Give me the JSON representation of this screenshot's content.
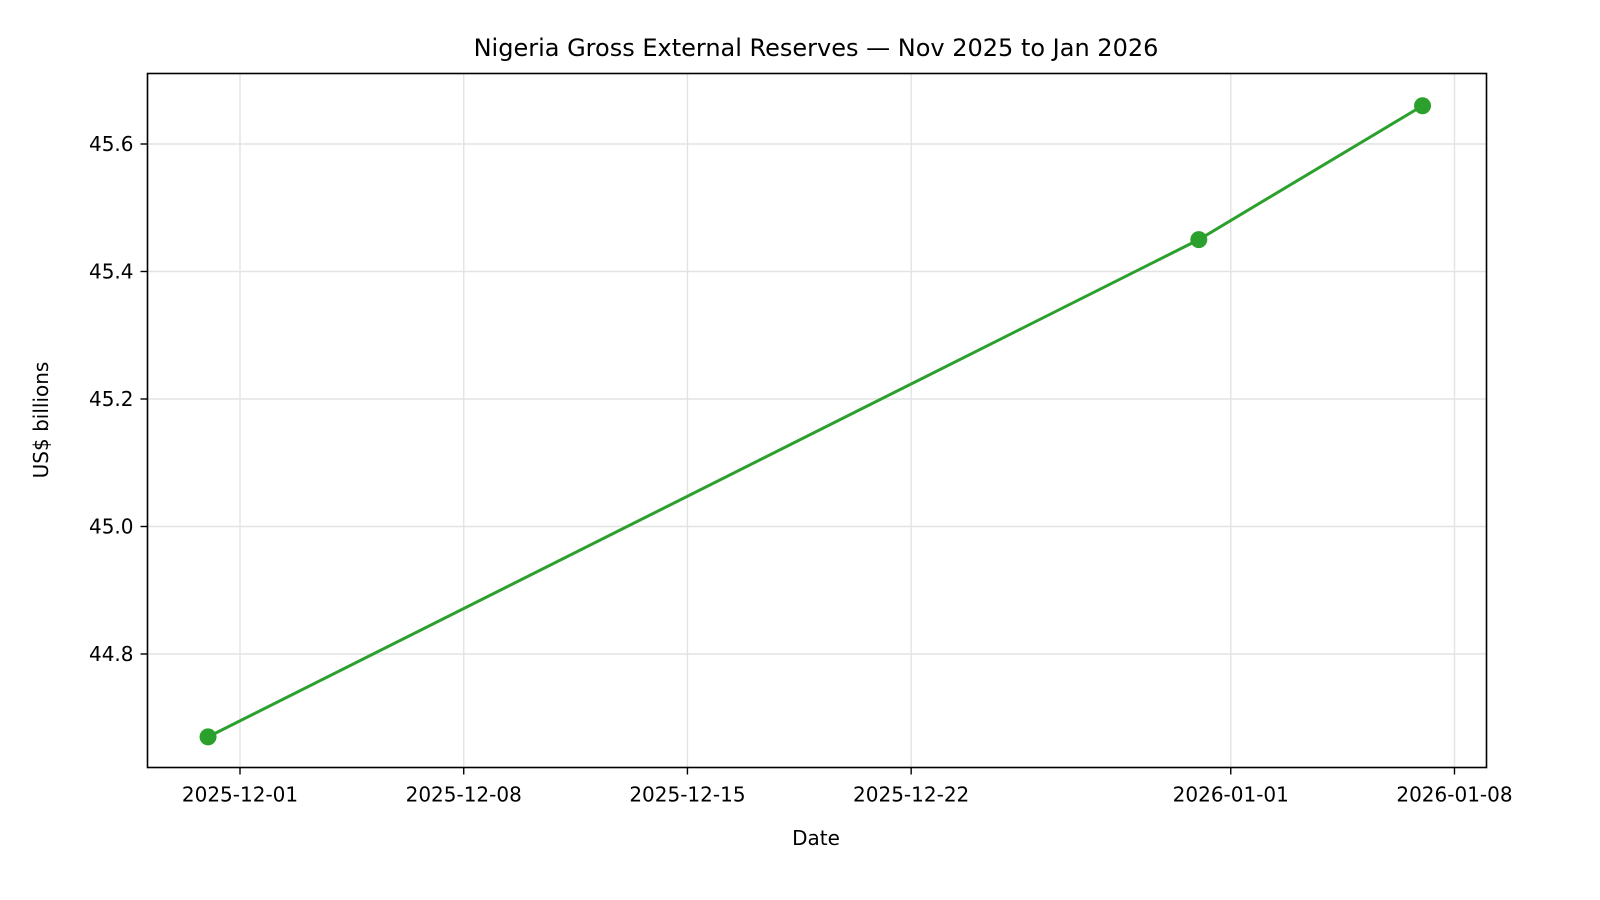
{
  "chart_data": {
    "type": "line",
    "title": "Nigeria Gross External Reserves — Nov 2025 to Jan 2026",
    "xlabel": "Date",
    "ylabel": "US$ billions",
    "x": [
      "2025-11-30",
      "2025-12-31",
      "2026-01-07"
    ],
    "series": [
      {
        "name": "Gross External Reserves",
        "values": [
          44.67,
          45.45,
          45.66
        ],
        "color": "#2ca02c",
        "marker": "circle"
      }
    ],
    "xticks": [
      "2025-12-01",
      "2025-12-08",
      "2025-12-15",
      "2025-12-22",
      "2026-01-01",
      "2026-01-08"
    ],
    "yticks": [
      "44.8",
      "45.0",
      "45.2",
      "45.4",
      "45.6"
    ],
    "ylim": [
      44.625,
      45.71
    ],
    "xlim": [
      "2025-11-27",
      "2026-01-08"
    ],
    "grid": true,
    "legend": null
  }
}
